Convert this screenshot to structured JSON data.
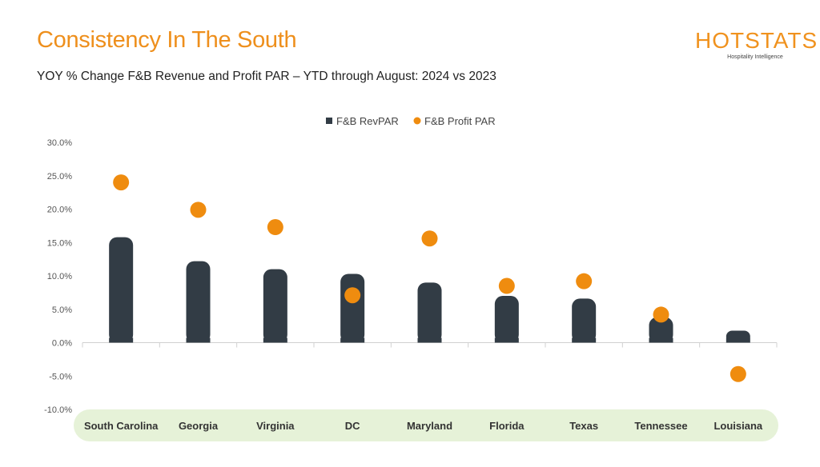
{
  "header": {
    "title": "Consistency In The South",
    "subtitle": "YOY % Change F&B Revenue and Profit PAR – YTD through August: 2024 vs 2023"
  },
  "logo": {
    "word": "HOTSTATS",
    "tagline": "Hospitality Intelligence"
  },
  "colors": {
    "title": "#ee8f1c",
    "bar": "#323c45",
    "dot": "#ef8c0f",
    "category_band": "#e6f2d8"
  },
  "chart_data": {
    "type": "bar",
    "categories": [
      "South Carolina",
      "Georgia",
      "Virginia",
      "DC",
      "Maryland",
      "Florida",
      "Texas",
      "Tennessee",
      "Louisiana"
    ],
    "series": [
      {
        "name": "F&B RevPAR",
        "type": "bar",
        "values": [
          15.8,
          12.2,
          11.0,
          10.3,
          9.0,
          7.0,
          6.6,
          3.8,
          1.8
        ]
      },
      {
        "name": "F&B Profit PAR",
        "type": "scatter",
        "values": [
          24.0,
          19.9,
          17.3,
          7.1,
          15.6,
          8.5,
          9.2,
          4.2,
          -4.7
        ]
      }
    ],
    "ylim": [
      -10,
      30
    ],
    "yticks": [
      "30.0%",
      "25.0%",
      "20.0%",
      "15.0%",
      "10.0%",
      "5.0%",
      "0.0%",
      "-5.0%",
      "-10.0%"
    ],
    "legend": "top-center",
    "grid": false
  }
}
